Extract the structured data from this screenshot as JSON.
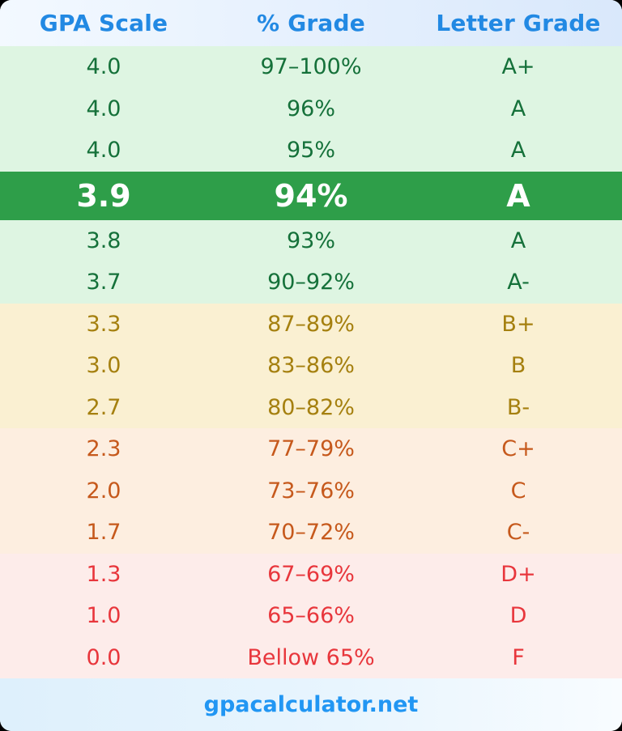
{
  "header": {
    "columns": [
      "GPA Scale",
      "% Grade",
      "Letter Grade"
    ],
    "text_color": "#2289e3"
  },
  "table": {
    "sections": [
      {
        "band": "A",
        "bg_color": "#def5e2",
        "text_color": "#15713a",
        "rows": [
          {
            "gpa": "4.0",
            "percent": "97–100%",
            "letter": "A+",
            "highlighted": false
          },
          {
            "gpa": "4.0",
            "percent": "96%",
            "letter": "A",
            "highlighted": false
          },
          {
            "gpa": "4.0",
            "percent": "95%",
            "letter": "A",
            "highlighted": false
          },
          {
            "gpa": "3.9",
            "percent": "94%",
            "letter": "A",
            "highlighted": true
          },
          {
            "gpa": "3.8",
            "percent": "93%",
            "letter": "A",
            "highlighted": false
          },
          {
            "gpa": "3.7",
            "percent": "90–92%",
            "letter": "A-",
            "highlighted": false
          }
        ]
      },
      {
        "band": "B",
        "bg_color": "#faf0d2",
        "text_color": "#a5800f",
        "rows": [
          {
            "gpa": "3.3",
            "percent": "87–89%",
            "letter": "B+",
            "highlighted": false
          },
          {
            "gpa": "3.0",
            "percent": "83–86%",
            "letter": "B",
            "highlighted": false
          },
          {
            "gpa": "2.7",
            "percent": "80–82%",
            "letter": "B-",
            "highlighted": false
          }
        ]
      },
      {
        "band": "C",
        "bg_color": "#fdeee0",
        "text_color": "#c6591c",
        "rows": [
          {
            "gpa": "2.3",
            "percent": "77–79%",
            "letter": "C+",
            "highlighted": false
          },
          {
            "gpa": "2.0",
            "percent": "73–76%",
            "letter": "C",
            "highlighted": false
          },
          {
            "gpa": "1.7",
            "percent": "70–72%",
            "letter": "C-",
            "highlighted": false
          }
        ]
      },
      {
        "band": "D",
        "bg_color": "#fdecea",
        "text_color": "#e8363c",
        "rows": [
          {
            "gpa": "1.3",
            "percent": "67–69%",
            "letter": "D+",
            "highlighted": false
          },
          {
            "gpa": "1.0",
            "percent": "65–66%",
            "letter": "D",
            "highlighted": false
          },
          {
            "gpa": "0.0",
            "percent": "Bellow 65%",
            "letter": "F",
            "highlighted": false
          }
        ]
      }
    ],
    "highlight": {
      "bg_color": "#2e9e49",
      "text_color": "#ffffff"
    }
  },
  "footer": {
    "site_label": "gpacalculator.net",
    "text_color": "#2196f3"
  }
}
